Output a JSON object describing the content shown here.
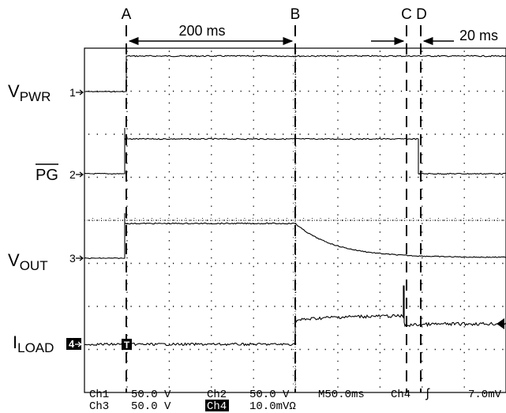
{
  "markers": [
    {
      "id": "A",
      "label": "A"
    },
    {
      "id": "B",
      "label": "B"
    },
    {
      "id": "C",
      "label": "C"
    },
    {
      "id": "D",
      "label": "D"
    }
  ],
  "annotations": {
    "interval_ab": "200 ms",
    "interval_cd": "20 ms"
  },
  "channels": [
    {
      "num": "1",
      "main": "V",
      "sub": "PWR",
      "overline": false
    },
    {
      "num": "2",
      "main": "PG",
      "sub": "",
      "overline": true
    },
    {
      "num": "3",
      "main": "V",
      "sub": "OUT",
      "overline": false
    },
    {
      "num": "4",
      "main": "I",
      "sub": "LOAD",
      "overline": false
    }
  ],
  "status_bar": {
    "ch1_label": "Ch1",
    "ch1_scale": "50.0 V",
    "ch2_label": "Ch2",
    "ch2_scale": "50.0 V",
    "ch3_label": "Ch3",
    "ch3_scale": "50.0 V",
    "ch4_label": "Ch4",
    "ch4_scale": "10.0mVΩ",
    "timebase": "M50.0ms",
    "trigger_source": "Ch4",
    "trigger_slope": "ʃ",
    "trigger_level": "7.0mV"
  },
  "trigger_marker": "T",
  "colors": {
    "background": "#ffffff",
    "trace": "#000000",
    "grid": "#000000"
  }
}
